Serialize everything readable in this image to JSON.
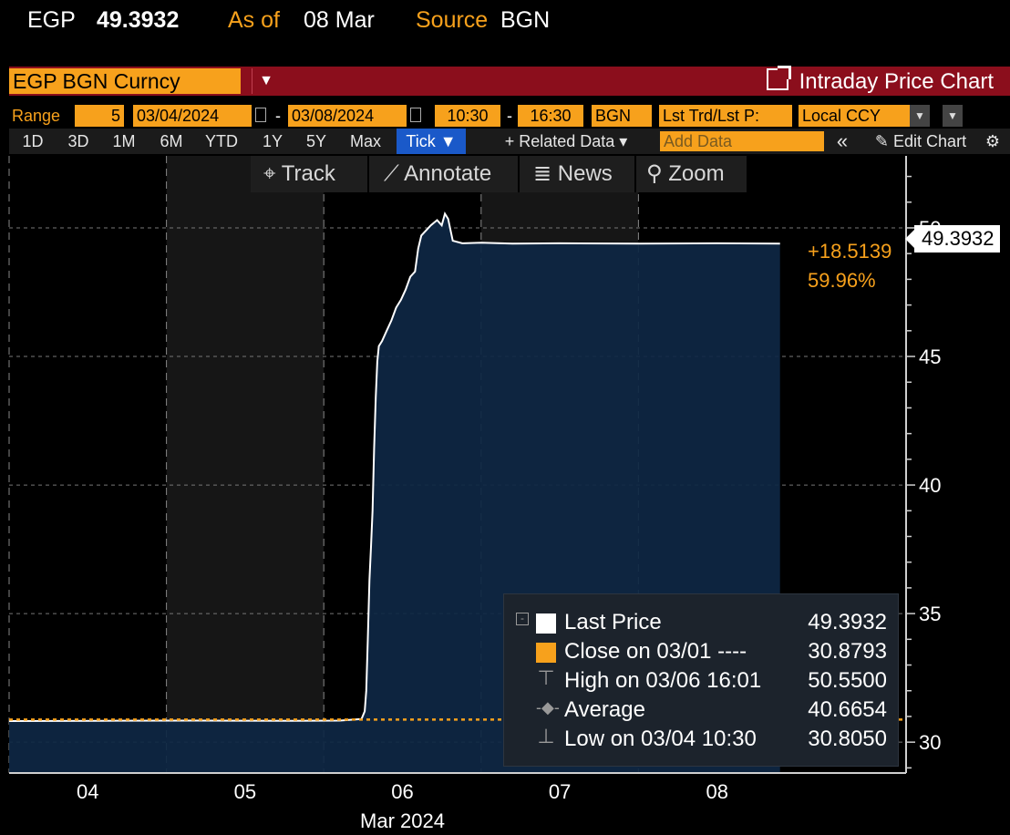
{
  "topbar": {
    "ticker": "EGP",
    "price": "49.3932",
    "asof_label": "As of",
    "asof_value": "08 Mar",
    "source_label": "Source",
    "source_value": "BGN"
  },
  "header": {
    "security": "EGP BGN Curncy",
    "title": "Intraday Price Chart"
  },
  "range": {
    "label": "Range",
    "count": "5",
    "start_date": "03/04/2024",
    "end_date": "03/08/2024",
    "start_time": "10:30",
    "end_time": "16:30",
    "source": "BGN",
    "field": "Lst Trd/Lst P:",
    "currency": "Local CCY"
  },
  "periods": [
    "1D",
    "3D",
    "1M",
    "6M",
    "YTD",
    "1Y",
    "5Y",
    "Max"
  ],
  "period_selected": "Tick ▼",
  "related_data": "+ Related Data ▾",
  "add_data_placeholder": "Add Data",
  "collapse": "«",
  "edit_chart": "Edit Chart",
  "toolbar": {
    "track": "Track",
    "annotate": "Annotate",
    "news": "News",
    "zoom": "Zoom"
  },
  "legend": [
    {
      "label": "Last Price",
      "value": "49.3932",
      "color": "#ffffff"
    },
    {
      "label": "Close on 03/01 ----",
      "value": "30.8793",
      "color": "#f7a11c"
    },
    {
      "label": "High on 03/06 16:01",
      "value": "50.5500",
      "icon": "high-icon"
    },
    {
      "label": "Average",
      "value": "40.6654",
      "icon": "average-icon"
    },
    {
      "label": "Low on 03/04 10:30",
      "value": "30.8050",
      "icon": "low-icon"
    }
  ],
  "last_value_label": "49.3932",
  "change": {
    "abs": "+18.5139",
    "pct": "59.96%"
  },
  "chart_data": {
    "type": "area",
    "x_tick_labels": [
      "04",
      "05",
      "06",
      "07",
      "08"
    ],
    "x_month_label": "Mar 2024",
    "y_tick_labels": [
      "30",
      "35",
      "40",
      "45",
      "50"
    ],
    "ylim": [
      28.8,
      52.8
    ],
    "reference_line": {
      "name": "Close on 03/01",
      "value": 30.8793
    },
    "series": [
      {
        "name": "Last Price",
        "points": [
          [
            0.0,
            30.82
          ],
          [
            0.6,
            30.83
          ],
          [
            1.2,
            30.84
          ],
          [
            1.8,
            30.83
          ],
          [
            2.1,
            30.84
          ],
          [
            2.24,
            30.9
          ],
          [
            2.26,
            31.2
          ],
          [
            2.27,
            32.0
          ],
          [
            2.28,
            34.0
          ],
          [
            2.29,
            36.3
          ],
          [
            2.3,
            37.6
          ],
          [
            2.31,
            39.0
          ],
          [
            2.32,
            41.4
          ],
          [
            2.33,
            43.4
          ],
          [
            2.34,
            44.8
          ],
          [
            2.35,
            45.4
          ],
          [
            2.37,
            45.6
          ],
          [
            2.4,
            46.0
          ],
          [
            2.43,
            46.4
          ],
          [
            2.46,
            46.9
          ],
          [
            2.49,
            47.2
          ],
          [
            2.52,
            47.6
          ],
          [
            2.55,
            48.1
          ],
          [
            2.58,
            48.3
          ],
          [
            2.6,
            49.2
          ],
          [
            2.62,
            49.7
          ],
          [
            2.65,
            49.9
          ],
          [
            2.68,
            50.1
          ],
          [
            2.72,
            50.3
          ],
          [
            2.75,
            50.1
          ],
          [
            2.77,
            50.55
          ],
          [
            2.79,
            50.35
          ],
          [
            2.82,
            49.5
          ],
          [
            2.88,
            49.4
          ],
          [
            3.0,
            49.42
          ],
          [
            3.2,
            49.39
          ],
          [
            3.5,
            49.4
          ],
          [
            4.0,
            49.39
          ],
          [
            4.5,
            49.4
          ],
          [
            4.9,
            49.39
          ]
        ]
      }
    ]
  }
}
